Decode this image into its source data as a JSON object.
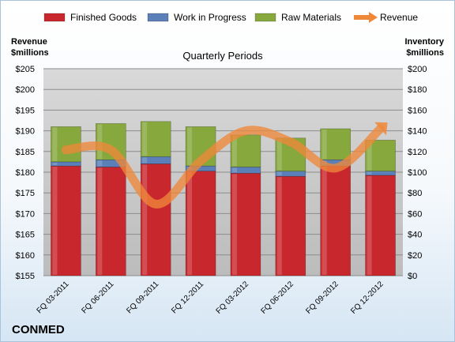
{
  "chart_data": {
    "type": "bar",
    "title": "Quarterly Periods",
    "company": "CONMED",
    "categories": [
      "FQ 03-2011",
      "FQ 06-2011",
      "FQ 09-2011",
      "FQ 12-2011",
      "FQ 03-2012",
      "FQ 06-2012",
      "FQ 09-2012",
      "FQ 12-2012"
    ],
    "stacked": true,
    "series": [
      {
        "name": "Finished Goods",
        "color": "#c8282d",
        "values": [
          106,
          105,
          108,
          101,
          99,
          96,
          106,
          97
        ]
      },
      {
        "name": "Work in Progress",
        "color": "#5b7fb8",
        "values": [
          4,
          7,
          7,
          5,
          6,
          5,
          6,
          4
        ]
      },
      {
        "name": "Raw Materials",
        "color": "#86a83c",
        "values": [
          34,
          35,
          34,
          38,
          31,
          32,
          30,
          30
        ]
      }
    ],
    "line_series": {
      "name": "Revenue",
      "color": "#f0883a",
      "values": [
        185.4,
        185.4,
        172.3,
        182.7,
        190.0,
        187.3,
        181.0,
        190.5
      ],
      "axis": "left"
    },
    "left_axis": {
      "label": "Revenue\n$millions",
      "min": 155,
      "max": 205,
      "step": 5,
      "prefix": "$"
    },
    "right_axis": {
      "label": "Inventory\n$millions",
      "min": 0,
      "max": 200,
      "step": 20,
      "prefix": "$"
    },
    "legend_position": "top",
    "grid": true
  }
}
